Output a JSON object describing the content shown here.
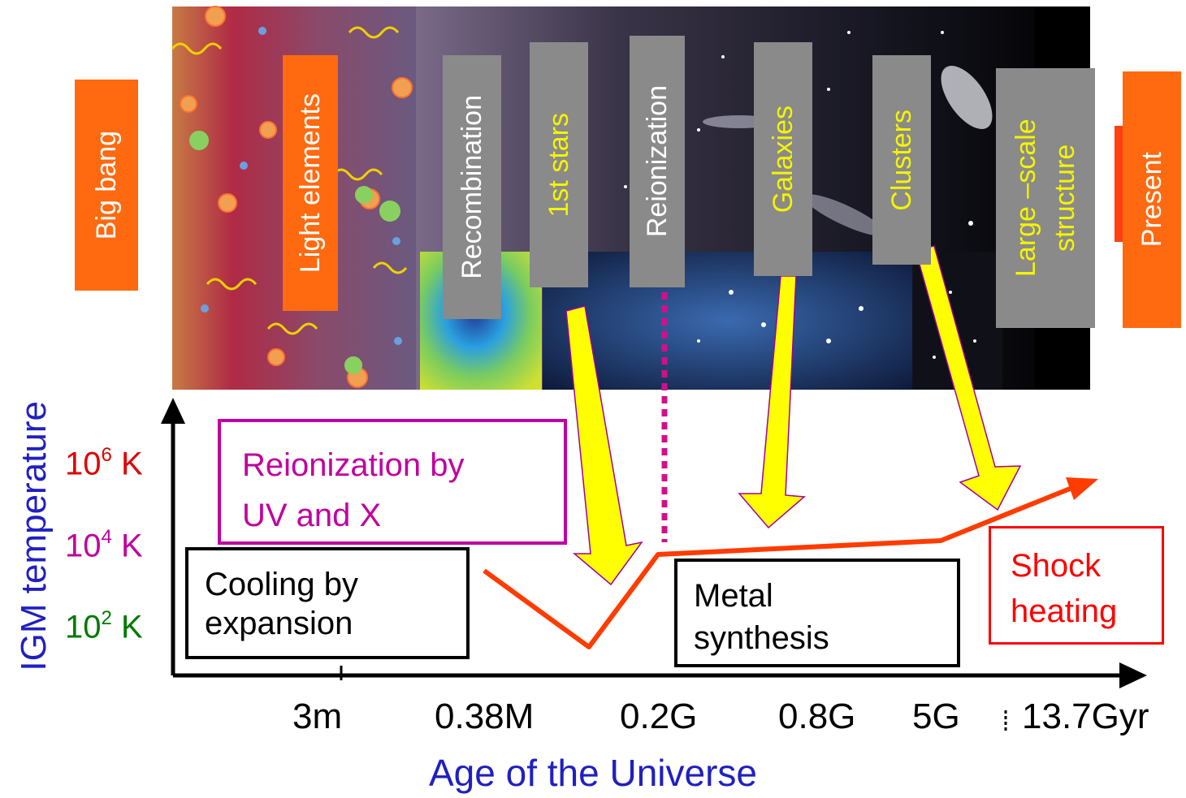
{
  "events": {
    "big_bang": "Big bang",
    "light_elements": "Light elements",
    "recombination": "Recombination",
    "first_stars": "1st  stars",
    "reionization": "Reionization",
    "galaxies": "Galaxies",
    "clusters": "Clusters",
    "large_scale": "Large –scale structure",
    "present": "Present"
  },
  "y_axis": {
    "label": "IGM temperature",
    "t6": {
      "base": "10",
      "exp": "6",
      "unit": " K",
      "color": "#e00000"
    },
    "t4": {
      "base": "10",
      "exp": "4",
      "unit": " K",
      "color": "#c000a0"
    },
    "t2": {
      "base": "10",
      "exp": "2",
      "unit": " K",
      "color": "#007a00"
    }
  },
  "x_axis": {
    "label": "Age of the Universe",
    "ticks": [
      "3m",
      "0.38M",
      "0.2G",
      "0.8G",
      "5G",
      "13.7Gyr"
    ]
  },
  "boxes": {
    "reionization": {
      "line1": "Reionization by",
      "line2": "UV and X",
      "color": "#c000a0"
    },
    "cooling": {
      "line1": "Cooling by",
      "line2": "expansion"
    },
    "metal": {
      "line1": "Metal",
      "line2": "synthesis"
    },
    "shock": {
      "line1": "Shock",
      "line2": "heating",
      "color": "#ff0000"
    }
  },
  "colors": {
    "orange": "#ff6a10",
    "grey": "#8a8a8a",
    "yellow": "#f4f400",
    "curve": "#ff3c00",
    "axis_label": "#2020c0"
  }
}
